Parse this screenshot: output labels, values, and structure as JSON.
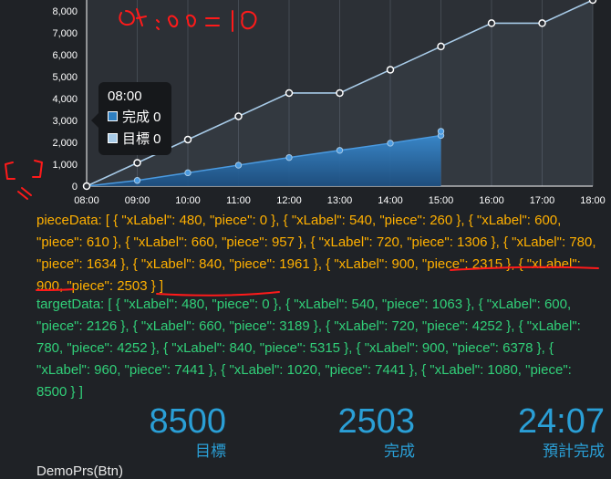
{
  "chart_data": {
    "type": "line",
    "x_labels": [
      "08:00",
      "09:00",
      "10:00",
      "11:00",
      "12:00",
      "13:00",
      "14:00",
      "15:00",
      "16:00",
      "17:00",
      "18:00"
    ],
    "y_ticks": [
      "0",
      "1,000",
      "2,000",
      "3,000",
      "4,000",
      "5,000",
      "6,000",
      "7,000",
      "8,000"
    ],
    "ylim": [
      0,
      8500
    ],
    "xlim": [
      480,
      1080
    ],
    "series": [
      {
        "name": "完成",
        "style": "area",
        "color": "#2f7fc1",
        "x": [
          480,
          540,
          600,
          660,
          720,
          780,
          840,
          900,
          900
        ],
        "y": [
          0,
          260,
          610,
          957,
          1306,
          1634,
          1961,
          2315,
          2503
        ]
      },
      {
        "name": "目標",
        "style": "line",
        "color": "#a8cbe8",
        "x": [
          480,
          540,
          600,
          660,
          720,
          780,
          840,
          900,
          960,
          1020,
          1080
        ],
        "y": [
          0,
          1063,
          2126,
          3189,
          4252,
          4252,
          5315,
          6378,
          7441,
          7441,
          8500
        ]
      }
    ]
  },
  "tooltip": {
    "title": "08:00",
    "rows": [
      {
        "label": "完成 0",
        "color": "#2f7fc1"
      },
      {
        "label": "目標 0",
        "color": "#a8cbe8"
      }
    ]
  },
  "piece_data_text": "pieceData: [ { \"xLabel\": 480, \"piece\": 0 }, { \"xLabel\": 540, \"piece\": 260 }, { \"xLabel\": 600, \"piece\": 610 }, { \"xLabel\": 660, \"piece\": 957 }, { \"xLabel\": 720, \"piece\": 1306 }, { \"xLabel\": 780, \"piece\": 1634 }, { \"xLabel\": 840, \"piece\": 1961 }, { \"xLabel\": 900, \"piece\": 2315 }, { \"xLabel\": 900, \"piece\": 2503 } ]",
  "target_data_text": "targetData: [ { \"xLabel\": 480, \"piece\": 0 }, { \"xLabel\": 540, \"piece\": 1063 }, { \"xLabel\": 600, \"piece\": 2126 }, { \"xLabel\": 660, \"piece\": 3189 }, { \"xLabel\": 720, \"piece\": 4252 }, { \"xLabel\": 780, \"piece\": 4252 }, { \"xLabel\": 840, \"piece\": 5315 }, { \"xLabel\": 900, \"piece\": 6378 }, { \"xLabel\": 960, \"piece\": 7441 }, { \"xLabel\": 1020, \"piece\": 7441 }, { \"xLabel\": 1080, \"piece\": 8500 } ]",
  "stats": [
    {
      "value": "8500",
      "label": "目標"
    },
    {
      "value": "2503",
      "label": "完成"
    },
    {
      "value": "24:07",
      "label": "預計完成"
    }
  ],
  "footer_text": "DemoPrs(Btn)",
  "colors": {
    "accent": "#2a9fd6",
    "piece_text": "#ffb000",
    "target_text": "#31d079",
    "annotation": "#ff1a1a"
  }
}
